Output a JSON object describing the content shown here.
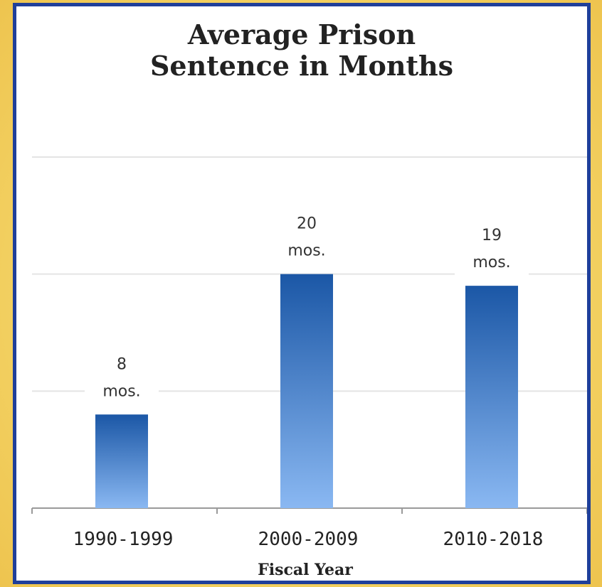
{
  "chart_data": {
    "type": "bar",
    "title": "Average Prison Sentence in Months",
    "title_lines": [
      "Average Prison",
      "Sentence in Months"
    ],
    "xlabel": "Fiscal Year",
    "ylabel": "",
    "categories": [
      "1990-1999",
      "2000-2009",
      "2010-2018"
    ],
    "values": [
      8,
      20,
      19
    ],
    "data_labels": [
      [
        "8",
        "mos."
      ],
      [
        "20",
        "mos."
      ],
      [
        "19",
        "mos."
      ]
    ],
    "ylim": [
      0,
      30
    ],
    "gridlines": [
      10,
      20,
      30
    ],
    "grid": true,
    "legend": "none",
    "colors": {
      "bar_top": "#1b57a6",
      "bar_bottom": "#8ab8f2",
      "grid": "#e4e4e4",
      "border": "#1f3f9a",
      "background": "#f5d66a"
    }
  }
}
